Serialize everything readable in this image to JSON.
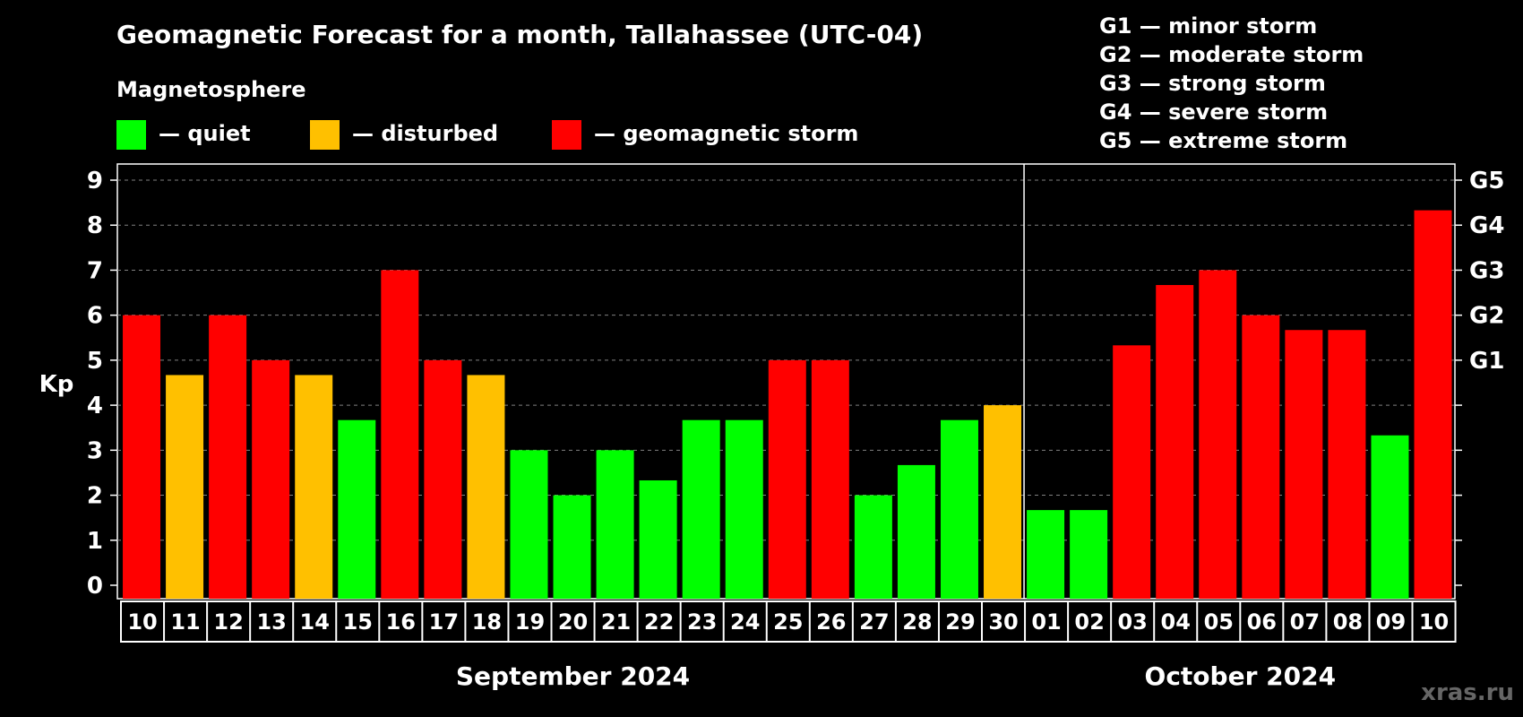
{
  "chart_data": {
    "type": "bar",
    "title": "Geomagnetic Forecast for a month, Tallahassee (UTC-04)",
    "ylabel": "Kp",
    "ylim": [
      0,
      9
    ],
    "yticks": [
      "0",
      "1",
      "2",
      "3",
      "4",
      "5",
      "6",
      "7",
      "8",
      "9"
    ],
    "grid": true,
    "legend": {
      "heading": "Magnetosphere",
      "items": [
        {
          "label": "— quiet",
          "color": "#00ff00"
        },
        {
          "label": "— disturbed",
          "color": "#ffc000"
        },
        {
          "label": "— geomagnetic storm",
          "color": "#ff0000"
        }
      ]
    },
    "storm_legend": [
      "G1 — minor storm",
      "G2 — moderate storm",
      "G3 — strong storm",
      "G4 — severe storm",
      "G5 — extreme storm"
    ],
    "right_axis": [
      {
        "label": "G1",
        "kp": 5
      },
      {
        "label": "G2",
        "kp": 6
      },
      {
        "label": "G3",
        "kp": 7
      },
      {
        "label": "G4",
        "kp": 8
      },
      {
        "label": "G5",
        "kp": 9
      }
    ],
    "months": [
      {
        "label": "September 2024",
        "days": [
          "10",
          "11",
          "12",
          "13",
          "14",
          "15",
          "16",
          "17",
          "18",
          "19",
          "20",
          "21",
          "22",
          "23",
          "24",
          "25",
          "26",
          "27",
          "28",
          "29",
          "30"
        ]
      },
      {
        "label": "October 2024",
        "days": [
          "01",
          "02",
          "03",
          "04",
          "05",
          "06",
          "07",
          "08",
          "09",
          "10"
        ]
      }
    ],
    "values": [
      6,
      4.67,
      6,
      5,
      4.67,
      3.67,
      7,
      5,
      4.67,
      3,
      2,
      3,
      2.33,
      3.67,
      3.67,
      5,
      5,
      2,
      2.67,
      3.67,
      4,
      1.67,
      1.67,
      5.33,
      6.67,
      7,
      6,
      5.67,
      5.67,
      3.33,
      8.33
    ],
    "bar_colors": [
      "#ff0000",
      "#ffc000",
      "#ff0000",
      "#ff0000",
      "#ffc000",
      "#00ff00",
      "#ff0000",
      "#ff0000",
      "#ffc000",
      "#00ff00",
      "#00ff00",
      "#00ff00",
      "#00ff00",
      "#00ff00",
      "#00ff00",
      "#ff0000",
      "#ff0000",
      "#00ff00",
      "#00ff00",
      "#00ff00",
      "#ffc000",
      "#00ff00",
      "#00ff00",
      "#ff0000",
      "#ff0000",
      "#ff0000",
      "#ff0000",
      "#ff0000",
      "#ff0000",
      "#00ff00",
      "#ff0000"
    ]
  },
  "watermark": "xras.ru"
}
